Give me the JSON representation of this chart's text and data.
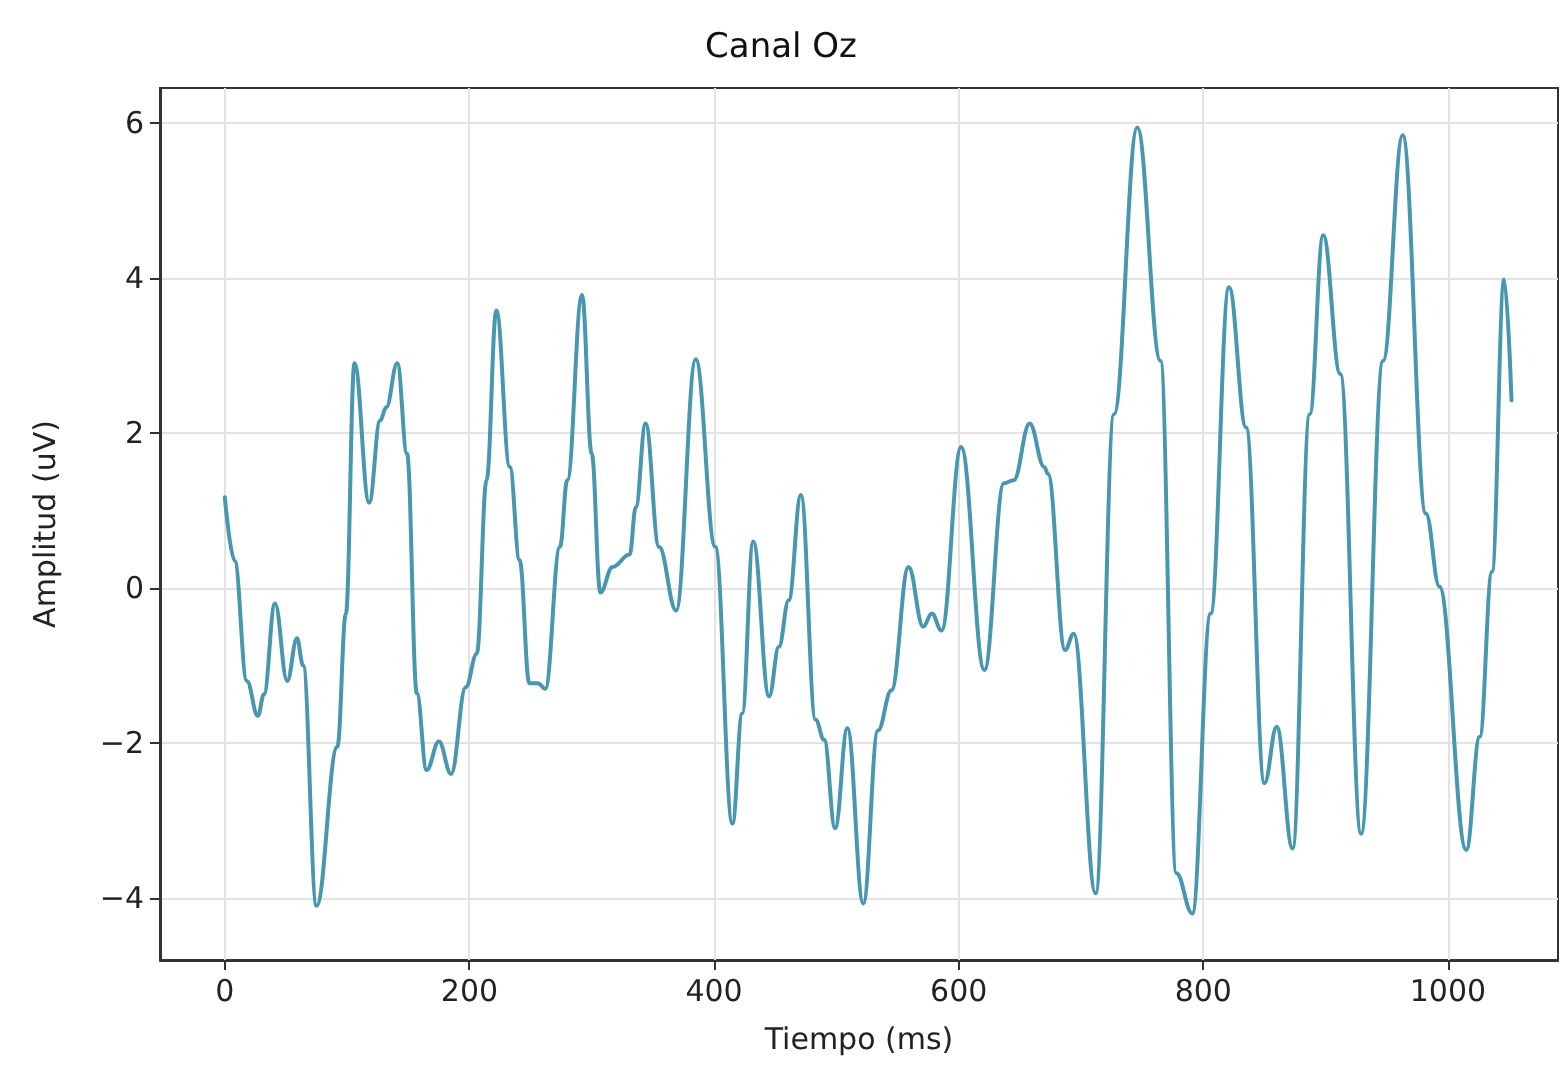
{
  "chart_data": {
    "type": "line",
    "title": "Canal Oz",
    "xlabel": "Tiempo (ms)",
    "ylabel": "Amplitud (uV)",
    "xlim": [
      -53,
      1090
    ],
    "ylim": [
      -4.8,
      6.45
    ],
    "xticks": [
      0,
      200,
      400,
      600,
      800,
      1000
    ],
    "yticks": [
      {
        "value": -4,
        "label": "−4"
      },
      {
        "value": -2,
        "label": "−2"
      },
      0,
      2,
      4,
      6
    ],
    "grid": true,
    "marker": "none",
    "line_style": "solid",
    "series": [
      {
        "color": "#4896b0",
        "x": [
          0,
          8,
          18,
          27,
          32,
          41,
          51,
          59,
          64,
          75,
          92,
          99,
          106,
          118,
          127,
          132,
          141,
          149,
          157,
          165,
          175,
          185,
          197,
          206,
          214,
          222,
          233,
          241,
          249,
          256,
          262,
          274,
          280,
          292,
          300,
          307,
          317,
          331,
          336,
          344,
          355,
          369,
          385,
          401,
          415,
          423,
          432,
          445,
          453,
          461,
          471,
          483,
          490,
          499,
          509,
          522,
          534,
          545,
          559,
          571,
          578,
          586,
          602,
          621,
          637,
          645,
          658,
          670,
          673,
          687,
          694,
          712,
          727,
          746,
          765,
          778,
          791,
          806,
          821,
          835,
          850,
          860,
          873,
          887,
          898,
          912,
          929,
          947,
          963,
          982,
          993,
          1015,
          1026,
          1036,
          1046,
          1052
        ],
        "values": [
          1.17,
          0.35,
          -1.2,
          -1.65,
          -1.37,
          -0.2,
          -1.2,
          -0.65,
          -1.0,
          -4.1,
          -2.05,
          -0.33,
          2.9,
          1.1,
          2.16,
          2.33,
          2.9,
          1.73,
          -1.36,
          -2.35,
          -1.98,
          -2.4,
          -1.28,
          -0.85,
          1.39,
          3.58,
          1.56,
          0.36,
          -1.23,
          -1.23,
          -1.3,
          0.53,
          1.39,
          3.78,
          1.73,
          -0.06,
          0.27,
          0.43,
          1.04,
          2.12,
          0.53,
          -0.29,
          2.95,
          0.53,
          -3.04,
          -1.62,
          0.6,
          -1.4,
          -0.76,
          -0.16,
          1.2,
          -1.7,
          -1.96,
          -3.1,
          -1.81,
          -4.07,
          -1.84,
          -1.32,
          0.27,
          -0.5,
          -0.33,
          -0.55,
          1.82,
          -1.06,
          1.35,
          1.39,
          2.12,
          1.56,
          1.47,
          -0.8,
          -0.59,
          -3.94,
          2.24,
          5.94,
          2.93,
          -3.68,
          -4.2,
          -0.33,
          3.88,
          2.07,
          -2.52,
          -1.79,
          -3.36,
          2.24,
          4.55,
          2.76,
          -3.17,
          2.93,
          5.84,
          0.96,
          0.02,
          -3.38,
          -1.92,
          0.21,
          3.98,
          2.42
        ]
      }
    ]
  }
}
